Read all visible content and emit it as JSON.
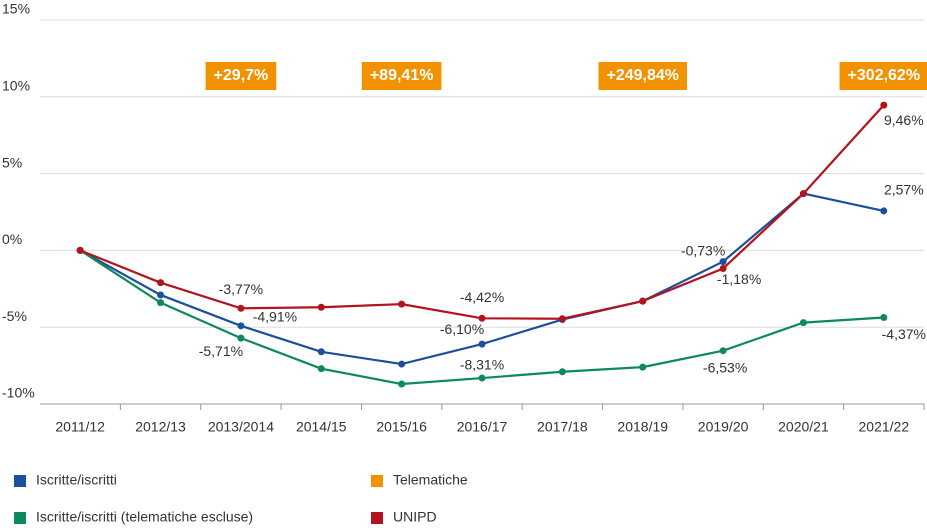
{
  "chart_data": {
    "type": "line",
    "categories": [
      "2011/12",
      "2012/13",
      "2013/2014",
      "2014/15",
      "2015/16",
      "2016/17",
      "2017/18",
      "2018/19",
      "2019/20",
      "2020/21",
      "2021/22"
    ],
    "ylim": [
      -10,
      15
    ],
    "yticks": [
      {
        "value": -10,
        "label": "-10%"
      },
      {
        "value": -5,
        "label": "-5%"
      },
      {
        "value": 0,
        "label": "0%"
      },
      {
        "value": 5,
        "label": "5%"
      },
      {
        "value": 10,
        "label": "10%"
      },
      {
        "value": 15,
        "label": "15%"
      }
    ],
    "grid": true,
    "series": [
      {
        "name": "Iscritte/iscritti",
        "color": "#1c4f9c",
        "values": [
          0,
          -2.9,
          -4.91,
          -6.6,
          -7.4,
          -6.1,
          -4.5,
          -3.3,
          -0.73,
          3.7,
          2.57
        ],
        "value_labels": [
          null,
          null,
          "-4,91%",
          null,
          null,
          "-6,10%",
          null,
          null,
          "-0,73%",
          null,
          "2,57%"
        ]
      },
      {
        "name": "Iscritte/iscritti (telematiche escluse)",
        "color": "#0d8a5c",
        "values": [
          0,
          -3.4,
          -5.71,
          -7.7,
          -8.7,
          -8.31,
          -7.9,
          -7.6,
          -6.53,
          -4.7,
          -4.37
        ],
        "value_labels": [
          null,
          null,
          "-5,71%",
          null,
          null,
          "-8,31%",
          null,
          null,
          "-6,53%",
          null,
          "-4,37%"
        ]
      },
      {
        "name": "Telematiche",
        "color": "#f39200",
        "style": "label-box",
        "values": [
          null,
          null,
          29.7,
          null,
          89.41,
          null,
          null,
          249.84,
          null,
          null,
          302.62
        ],
        "value_labels": [
          null,
          null,
          "+29,7%",
          null,
          "+89,41%",
          null,
          null,
          "+249,84%",
          null,
          null,
          "+302,62%"
        ]
      },
      {
        "name": "UNIPD",
        "color": "#b3131c",
        "values": [
          0,
          -2.1,
          -3.77,
          -3.7,
          -3.5,
          -4.42,
          -4.45,
          -3.3,
          -1.18,
          3.7,
          9.46
        ],
        "value_labels": [
          null,
          null,
          "-3,77%",
          null,
          null,
          "-4,42%",
          null,
          null,
          "-1,18%",
          null,
          "9,46%"
        ]
      }
    ]
  }
}
